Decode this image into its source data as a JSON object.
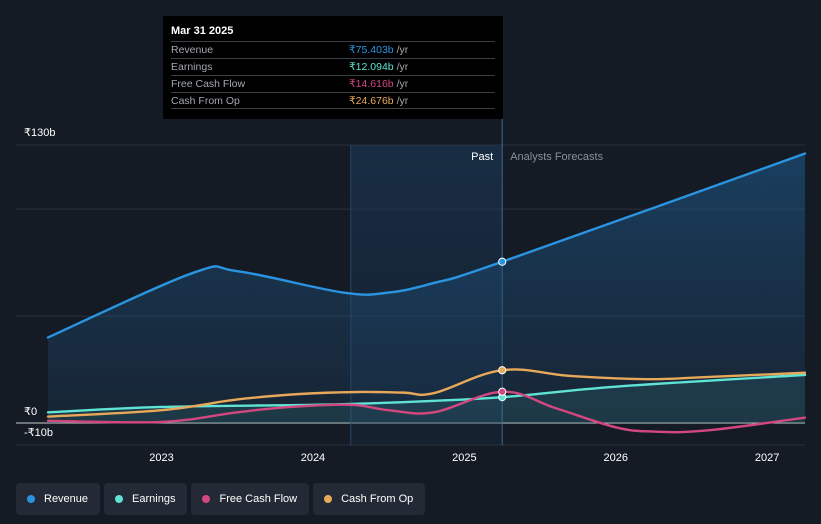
{
  "chart_data": {
    "type": "line",
    "x_start_year": 2022.25,
    "x_end_year": 2027.25,
    "divider_year": 2025.25,
    "highlight_start_year": 2024.25,
    "x_ticks": [
      2023,
      2024,
      2025,
      2026,
      2027
    ],
    "x_tick_labels": [
      "2023",
      "2024",
      "2025",
      "2026",
      "2027"
    ],
    "ylim": [
      -10,
      130
    ],
    "y_labels": [
      {
        "value": 130,
        "label": "₹130b"
      },
      {
        "value": 0,
        "label": "₹0"
      },
      {
        "value": -10,
        "label": "-₹10b"
      }
    ],
    "past_label": "Past",
    "forecast_label": "Analysts Forecasts",
    "series": [
      {
        "name": "Revenue",
        "color": "#2b94e1",
        "filled": true,
        "points": [
          [
            2022.25,
            40
          ],
          [
            2023.2,
            70
          ],
          [
            2023.5,
            71
          ],
          [
            2024.2,
            61
          ],
          [
            2024.5,
            61
          ],
          [
            2024.8,
            65.5
          ],
          [
            2025.25,
            75.403
          ],
          [
            2027.25,
            126
          ]
        ]
      },
      {
        "name": "Earnings",
        "color": "#5fe3d4",
        "filled": true,
        "points": [
          [
            2022.25,
            5
          ],
          [
            2023,
            7.5
          ],
          [
            2024,
            8.5
          ],
          [
            2024.5,
            9.5
          ],
          [
            2025.25,
            12.094
          ],
          [
            2026,
            17
          ],
          [
            2027.25,
            22.5
          ]
        ]
      },
      {
        "name": "Free Cash Flow",
        "color": "#d2477f",
        "filled": false,
        "points": [
          [
            2022.25,
            1
          ],
          [
            2023,
            0.5
          ],
          [
            2023.5,
            5
          ],
          [
            2023.85,
            7.5
          ],
          [
            2024.25,
            8.5
          ],
          [
            2024.5,
            6
          ],
          [
            2024.8,
            5
          ],
          [
            2025.25,
            14.616
          ],
          [
            2025.6,
            7
          ],
          [
            2026,
            -2
          ],
          [
            2026.25,
            -4
          ],
          [
            2026.6,
            -3.5
          ],
          [
            2027.25,
            2.5
          ]
        ]
      },
      {
        "name": "Cash From Op",
        "color": "#e8a85a",
        "filled": false,
        "points": [
          [
            2022.25,
            3
          ],
          [
            2023,
            6
          ],
          [
            2023.5,
            11
          ],
          [
            2023.9,
            13.5
          ],
          [
            2024.3,
            14.5
          ],
          [
            2024.6,
            14.2
          ],
          [
            2024.8,
            14
          ],
          [
            2025.25,
            24.676
          ],
          [
            2025.7,
            22
          ],
          [
            2026.2,
            20.5
          ],
          [
            2026.6,
            21.5
          ],
          [
            2027.25,
            23.5
          ]
        ]
      }
    ]
  },
  "tooltip": {
    "date": "Mar 31 2025",
    "rows": [
      {
        "label": "Revenue",
        "value": "₹75.403b",
        "unit": "/yr",
        "color": "#2b94e1"
      },
      {
        "label": "Earnings",
        "value": "₹12.094b",
        "unit": "/yr",
        "color": "#5fe3d4"
      },
      {
        "label": "Free Cash Flow",
        "value": "₹14.616b",
        "unit": "/yr",
        "color": "#d2477f"
      },
      {
        "label": "Cash From Op",
        "value": "₹24.676b",
        "unit": "/yr",
        "color": "#e8a85a"
      }
    ]
  },
  "legend": [
    {
      "label": "Revenue",
      "color": "#2b94e1"
    },
    {
      "label": "Earnings",
      "color": "#5fe3d4"
    },
    {
      "label": "Free Cash Flow",
      "color": "#d2477f"
    },
    {
      "label": "Cash From Op",
      "color": "#e8a85a"
    }
  ]
}
